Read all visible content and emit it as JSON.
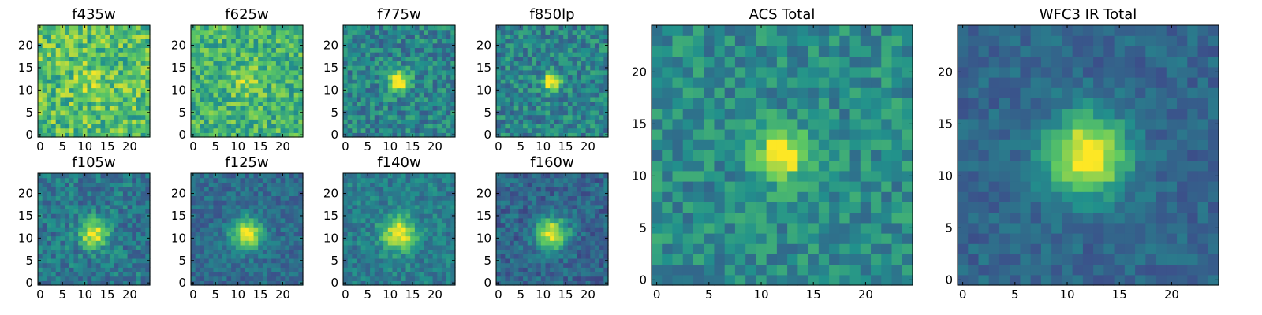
{
  "figure": {
    "colormap": [
      "#440154",
      "#3b528b",
      "#21918c",
      "#5ec962",
      "#fde725"
    ]
  },
  "chart_data": [
    {
      "type": "heatmap",
      "title": "f435w",
      "grid_size": 25,
      "xlim": [
        -0.5,
        24.5
      ],
      "ylim": [
        -0.5,
        24.5
      ],
      "xticks": [
        0,
        5,
        10,
        15,
        20
      ],
      "yticks": [
        0,
        5,
        10,
        15,
        20
      ],
      "peak_x": 12,
      "peak_y": 12,
      "peak_strength": 0.1,
      "peak_sigma": 3,
      "background": 0.7,
      "noise": 0.45,
      "seed": 11
    },
    {
      "type": "heatmap",
      "title": "f625w",
      "grid_size": 25,
      "xlim": [
        -0.5,
        24.5
      ],
      "ylim": [
        -0.5,
        24.5
      ],
      "xticks": [
        0,
        5,
        10,
        15,
        20
      ],
      "yticks": [
        0,
        5,
        10,
        15,
        20
      ],
      "peak_x": 12,
      "peak_y": 12,
      "peak_strength": 0.2,
      "peak_sigma": 2.5,
      "background": 0.65,
      "noise": 0.4,
      "seed": 23
    },
    {
      "type": "heatmap",
      "title": "f775w",
      "grid_size": 25,
      "xlim": [
        -0.5,
        24.5
      ],
      "ylim": [
        -0.5,
        24.5
      ],
      "xticks": [
        0,
        5,
        10,
        15,
        20
      ],
      "yticks": [
        0,
        5,
        10,
        15,
        20
      ],
      "peak_x": 12,
      "peak_y": 12,
      "peak_strength": 0.7,
      "peak_sigma": 1.6,
      "background": 0.45,
      "noise": 0.35,
      "seed": 37
    },
    {
      "type": "heatmap",
      "title": "f850lp",
      "grid_size": 25,
      "xlim": [
        -0.5,
        24.5
      ],
      "ylim": [
        -0.5,
        24.5
      ],
      "xticks": [
        0,
        5,
        10,
        15,
        20
      ],
      "yticks": [
        0,
        5,
        10,
        15,
        20
      ],
      "peak_x": 12,
      "peak_y": 12,
      "peak_strength": 0.65,
      "peak_sigma": 1.4,
      "background": 0.45,
      "noise": 0.35,
      "seed": 41
    },
    {
      "type": "heatmap",
      "title": "f105w",
      "grid_size": 25,
      "xlim": [
        -0.5,
        24.5
      ],
      "ylim": [
        -0.5,
        24.5
      ],
      "xticks": [
        0,
        5,
        10,
        15,
        20
      ],
      "yticks": [
        0,
        5,
        10,
        15,
        20
      ],
      "peak_x": 12,
      "peak_y": 11,
      "peak_strength": 0.6,
      "peak_sigma": 2.2,
      "background": 0.4,
      "noise": 0.3,
      "seed": 53
    },
    {
      "type": "heatmap",
      "title": "f125w",
      "grid_size": 25,
      "xlim": [
        -0.5,
        24.5
      ],
      "ylim": [
        -0.5,
        24.5
      ],
      "xticks": [
        0,
        5,
        10,
        15,
        20
      ],
      "yticks": [
        0,
        5,
        10,
        15,
        20
      ],
      "peak_x": 12,
      "peak_y": 11,
      "peak_strength": 0.65,
      "peak_sigma": 2.4,
      "background": 0.35,
      "noise": 0.22,
      "seed": 67
    },
    {
      "type": "heatmap",
      "title": "f140w",
      "grid_size": 25,
      "xlim": [
        -0.5,
        24.5
      ],
      "ylim": [
        -0.5,
        24.5
      ],
      "xticks": [
        0,
        5,
        10,
        15,
        20
      ],
      "yticks": [
        0,
        5,
        10,
        15,
        20
      ],
      "peak_x": 12,
      "peak_y": 11,
      "peak_strength": 0.6,
      "peak_sigma": 2.6,
      "background": 0.42,
      "noise": 0.25,
      "seed": 79
    },
    {
      "type": "heatmap",
      "title": "f160w",
      "grid_size": 25,
      "xlim": [
        -0.5,
        24.5
      ],
      "ylim": [
        -0.5,
        24.5
      ],
      "xticks": [
        0,
        5,
        10,
        15,
        20
      ],
      "yticks": [
        0,
        5,
        10,
        15,
        20
      ],
      "peak_x": 12,
      "peak_y": 11,
      "peak_strength": 0.7,
      "peak_sigma": 2.4,
      "background": 0.33,
      "noise": 0.25,
      "seed": 83
    },
    {
      "type": "heatmap",
      "title": "ACS Total",
      "grid_size": 25,
      "xlim": [
        -0.5,
        24.5
      ],
      "ylim": [
        -0.5,
        24.5
      ],
      "xticks": [
        0,
        5,
        10,
        15,
        20
      ],
      "yticks": [
        0,
        5,
        10,
        15,
        20
      ],
      "peak_x": 12,
      "peak_y": 12,
      "peak_strength": 0.6,
      "peak_sigma": 1.7,
      "background": 0.48,
      "noise": 0.3,
      "seed": 97
    },
    {
      "type": "heatmap",
      "title": "WFC3 IR Total",
      "grid_size": 25,
      "xlim": [
        -0.5,
        24.5
      ],
      "ylim": [
        -0.5,
        24.5
      ],
      "xticks": [
        0,
        5,
        10,
        15,
        20
      ],
      "yticks": [
        0,
        5,
        10,
        15,
        20
      ],
      "peak_x": 12,
      "peak_y": 12,
      "peak_strength": 0.75,
      "peak_sigma": 2.6,
      "background": 0.33,
      "noise": 0.18,
      "seed": 101
    }
  ]
}
